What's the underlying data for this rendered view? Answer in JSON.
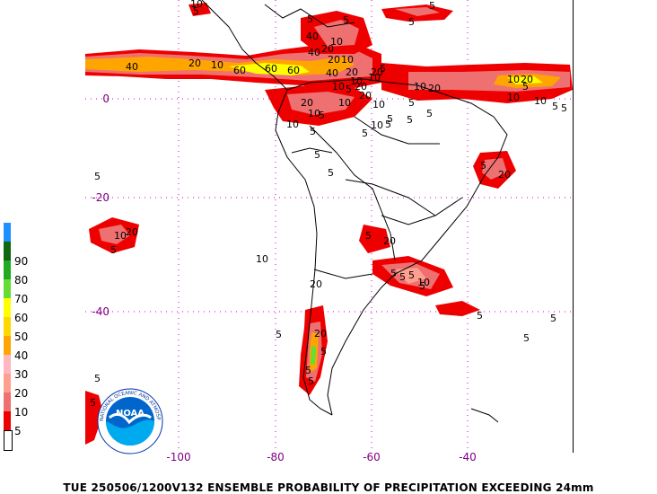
{
  "caption": "TUE 250506/1200V132  ENSEMBLE PROBABILITY OF PRECIPITATION EXCEEDING 24mm",
  "lat_labels": [
    "0",
    "-20",
    "-40"
  ],
  "lon_labels": [
    "-100",
    "-80",
    "-60",
    "-40"
  ],
  "legend": {
    "levels": [
      "5",
      "10",
      "20",
      "30",
      "40",
      "50",
      "60",
      "70",
      "80",
      "90"
    ],
    "colors": [
      "#ffffff",
      "#ee0000",
      "#ee7070",
      "#ff9f8f",
      "#ffb6c1",
      "#ffa500",
      "#ffd700",
      "#ffff00",
      "#66dd33",
      "#22aa22",
      "#116611",
      "#1e90ff"
    ]
  },
  "logo": {
    "text": "NOAA",
    "ring_text": "NATIONAL OCEANIC AND ATMOSPHERIC ADMINISTRATION"
  },
  "contour_labels": [
    "40",
    "20",
    "10",
    "60",
    "60",
    "60",
    "40",
    "40",
    "20",
    "10",
    "5",
    "20",
    "10",
    "40",
    "20",
    "10",
    "5",
    "20",
    "10",
    "5",
    "10",
    "20",
    "10",
    "5",
    "10",
    "20",
    "10",
    "20",
    "5",
    "10",
    "5",
    "10",
    "5",
    "5",
    "5",
    "10",
    "5",
    "5",
    "5",
    "20",
    "10",
    "20",
    "5",
    "10",
    "5",
    "20",
    "10",
    "5",
    "5",
    "5",
    "5",
    "5",
    "20",
    "10",
    "20",
    "10",
    "5",
    "5",
    "5",
    "5",
    "10",
    "20",
    "20",
    "5",
    "5",
    "5",
    "10",
    "5",
    "5",
    "5",
    "5",
    "5",
    "5",
    "5",
    "5",
    "10",
    "5",
    "5",
    "5"
  ]
}
